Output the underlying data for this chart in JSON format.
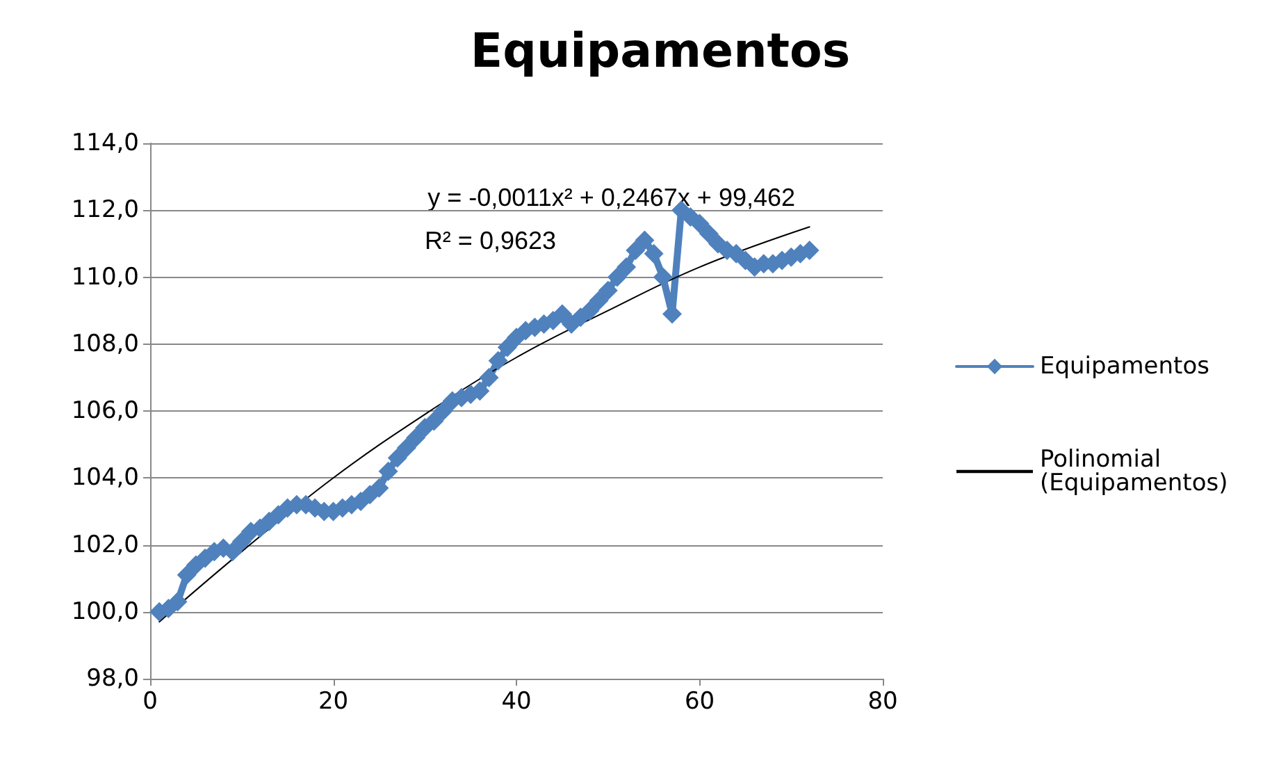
{
  "chart_data": {
    "type": "line",
    "title": "Equipamentos",
    "annotations": [
      "y = -0,0011x² + 0,2467x + 99,462",
      "R² = 0,9623"
    ],
    "xlim": [
      0,
      80
    ],
    "xticks": [
      0,
      20,
      40,
      60,
      80
    ],
    "ylim": [
      98,
      114
    ],
    "yticks": [
      {
        "value": 98,
        "label": "98,0"
      },
      {
        "value": 100,
        "label": "100,0"
      },
      {
        "value": 102,
        "label": "102,0"
      },
      {
        "value": 104,
        "label": "104,0"
      },
      {
        "value": 106,
        "label": "106,0"
      },
      {
        "value": 108,
        "label": "108,0"
      },
      {
        "value": 110,
        "label": "110,0"
      },
      {
        "value": 112,
        "label": "112,0"
      },
      {
        "value": 114,
        "label": "114,0"
      }
    ],
    "grid": "y",
    "legend": "right",
    "marker": "diamond",
    "line_style": "solid",
    "series": [
      {
        "name": "Equipamentos",
        "color": "#4f81bd",
        "x": [
          1,
          2,
          3,
          4,
          5,
          6,
          7,
          8,
          9,
          10,
          11,
          12,
          13,
          14,
          15,
          16,
          17,
          18,
          19,
          20,
          21,
          22,
          23,
          24,
          25,
          26,
          27,
          28,
          29,
          30,
          31,
          32,
          33,
          34,
          35,
          36,
          37,
          38,
          39,
          40,
          41,
          42,
          43,
          44,
          45,
          46,
          47,
          48,
          49,
          50,
          51,
          52,
          53,
          54,
          55,
          56,
          57,
          58,
          59,
          60,
          61,
          62,
          63,
          64,
          65,
          66,
          67,
          68,
          69,
          70,
          71,
          72
        ],
        "values": [
          100.0,
          100.1,
          100.3,
          101.1,
          101.4,
          101.6,
          101.8,
          101.9,
          101.8,
          102.1,
          102.4,
          102.5,
          102.7,
          102.9,
          103.1,
          103.2,
          103.2,
          103.1,
          103.0,
          103.0,
          103.1,
          103.2,
          103.3,
          103.5,
          103.7,
          104.2,
          104.6,
          104.9,
          105.2,
          105.5,
          105.7,
          106.0,
          106.3,
          106.4,
          106.5,
          106.6,
          107.0,
          107.5,
          107.9,
          108.2,
          108.4,
          108.5,
          108.6,
          108.7,
          108.9,
          108.6,
          108.8,
          109.0,
          109.3,
          109.6,
          110.0,
          110.3,
          110.8,
          111.1,
          110.7,
          110.0,
          108.9,
          112.0,
          111.8,
          111.6,
          111.3,
          111.0,
          110.8,
          110.7,
          110.5,
          110.3,
          110.4,
          110.4,
          110.5,
          110.6,
          110.7,
          110.8
        ]
      },
      {
        "name": "Polinomial (Equipamentos)",
        "color": "#000000",
        "marker": "none",
        "x": [
          1,
          10,
          20,
          30,
          40,
          50,
          60,
          72
        ],
        "values": [
          99.7,
          101.8,
          104.0,
          105.9,
          107.6,
          109.0,
          110.3,
          111.5
        ]
      }
    ]
  }
}
